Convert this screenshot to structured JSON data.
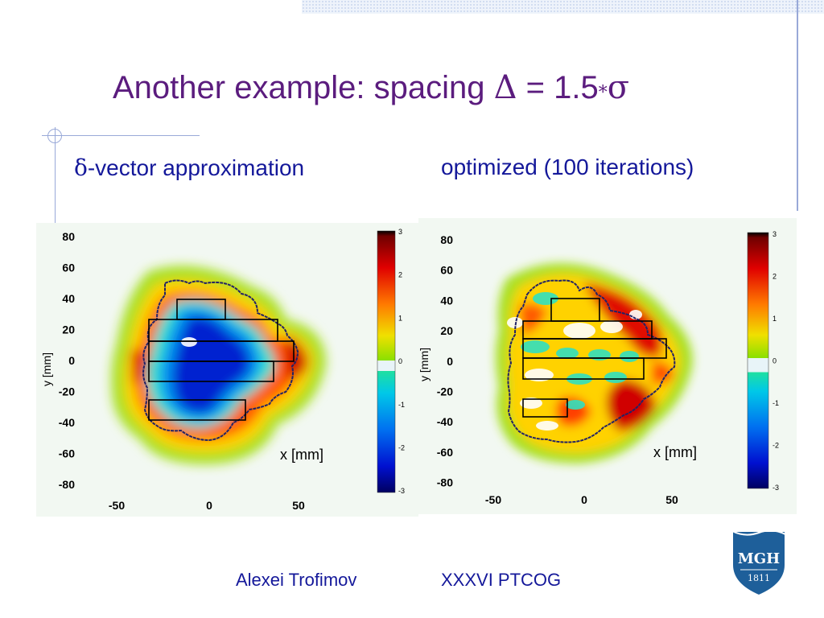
{
  "slide": {
    "title_text": "Another example: spacing ",
    "title_delta": "Δ",
    "title_eq": " = 1.5",
    "title_star": "*",
    "title_sigma": "σ",
    "left_subtitle_symbol": "δ",
    "left_subtitle_text": "-vector approximation",
    "right_subtitle": "optimized (100 iterations)",
    "footer_author": "Alexei Trofimov",
    "footer_event": "XXXVI PTCOG",
    "logo_text": "MGH",
    "logo_year": "1811"
  },
  "left_plot": {
    "ylabel": "y [mm]",
    "xlabel": "x [mm]",
    "yticks": [
      "80",
      "60",
      "40",
      "20",
      "0",
      "-20",
      "-40",
      "-60",
      "-80"
    ],
    "xticks": [
      "-50",
      "0",
      "50"
    ],
    "cbticks": [
      "3",
      "2",
      "1",
      "0",
      "-1",
      "-2",
      "-3"
    ]
  },
  "right_plot": {
    "ylabel": "y [mm]",
    "xlabel": "x [mm]",
    "yticks": [
      "80",
      "60",
      "40",
      "20",
      "0",
      "-20",
      "-40",
      "-60",
      "-80"
    ],
    "xticks": [
      "-50",
      "0",
      "50"
    ],
    "cbticks": [
      "3",
      "2",
      "1",
      "0",
      "-1",
      "-2",
      "-3"
    ]
  },
  "colors": {
    "title": "#5b1c7e",
    "text": "#14189a",
    "logo": "#1e5f9a"
  }
}
